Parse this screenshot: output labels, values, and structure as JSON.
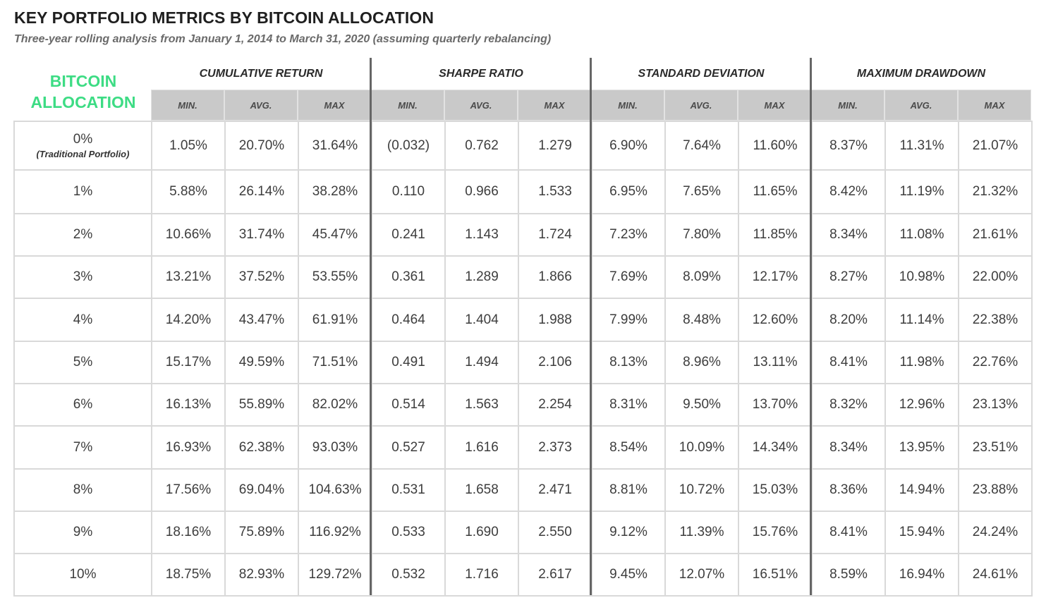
{
  "title": "KEY PORTFOLIO METRICS BY BITCOIN ALLOCATION",
  "subtitle": "Three-year rolling analysis from January 1, 2014 to March 31, 2020 (assuming quarterly rebalancing)",
  "allocation_header": [
    "BITCOIN",
    "ALLOCATION"
  ],
  "groups": [
    "CUMULATIVE RETURN",
    "SHARPE RATIO",
    "STANDARD DEVIATION",
    "MAXIMUM DRAWDOWN"
  ],
  "subheaders": [
    "MIN.",
    "AVG.",
    "MAX"
  ],
  "rows": [
    {
      "allocation": "0%",
      "note": "(Traditional Portfolio)",
      "values": [
        "1.05%",
        "20.70%",
        "31.64%",
        "(0.032)",
        "0.762",
        "1.279",
        "6.90%",
        "7.64%",
        "11.60%",
        "8.37%",
        "11.31%",
        "21.07%"
      ]
    },
    {
      "allocation": "1%",
      "values": [
        "5.88%",
        "26.14%",
        "38.28%",
        "0.110",
        "0.966",
        "1.533",
        "6.95%",
        "7.65%",
        "11.65%",
        "8.42%",
        "11.19%",
        "21.32%"
      ]
    },
    {
      "allocation": "2%",
      "values": [
        "10.66%",
        "31.74%",
        "45.47%",
        "0.241",
        "1.143",
        "1.724",
        "7.23%",
        "7.80%",
        "11.85%",
        "8.34%",
        "11.08%",
        "21.61%"
      ]
    },
    {
      "allocation": "3%",
      "values": [
        "13.21%",
        "37.52%",
        "53.55%",
        "0.361",
        "1.289",
        "1.866",
        "7.69%",
        "8.09%",
        "12.17%",
        "8.27%",
        "10.98%",
        "22.00%"
      ]
    },
    {
      "allocation": "4%",
      "values": [
        "14.20%",
        "43.47%",
        "61.91%",
        "0.464",
        "1.404",
        "1.988",
        "7.99%",
        "8.48%",
        "12.60%",
        "8.20%",
        "11.14%",
        "22.38%"
      ]
    },
    {
      "allocation": "5%",
      "values": [
        "15.17%",
        "49.59%",
        "71.51%",
        "0.491",
        "1.494",
        "2.106",
        "8.13%",
        "8.96%",
        "13.11%",
        "8.41%",
        "11.98%",
        "22.76%"
      ]
    },
    {
      "allocation": "6%",
      "values": [
        "16.13%",
        "55.89%",
        "82.02%",
        "0.514",
        "1.563",
        "2.254",
        "8.31%",
        "9.50%",
        "13.70%",
        "8.32%",
        "12.96%",
        "23.13%"
      ]
    },
    {
      "allocation": "7%",
      "values": [
        "16.93%",
        "62.38%",
        "93.03%",
        "0.527",
        "1.616",
        "2.373",
        "8.54%",
        "10.09%",
        "14.34%",
        "8.34%",
        "13.95%",
        "23.51%"
      ]
    },
    {
      "allocation": "8%",
      "values": [
        "17.56%",
        "69.04%",
        "104.63%",
        "0.531",
        "1.658",
        "2.471",
        "8.81%",
        "10.72%",
        "15.03%",
        "8.36%",
        "14.94%",
        "23.88%"
      ]
    },
    {
      "allocation": "9%",
      "values": [
        "18.16%",
        "75.89%",
        "116.92%",
        "0.533",
        "1.690",
        "2.550",
        "9.12%",
        "11.39%",
        "15.76%",
        "8.41%",
        "15.94%",
        "24.24%"
      ]
    },
    {
      "allocation": "10%",
      "values": [
        "18.75%",
        "82.93%",
        "129.72%",
        "0.532",
        "1.716",
        "2.617",
        "9.45%",
        "12.07%",
        "16.51%",
        "8.59%",
        "16.94%",
        "24.61%"
      ]
    }
  ],
  "colors": {
    "allocation_header": "#3ddc84",
    "subheader_bg": "#c9c9c9",
    "grid": "#d9d9d9"
  }
}
